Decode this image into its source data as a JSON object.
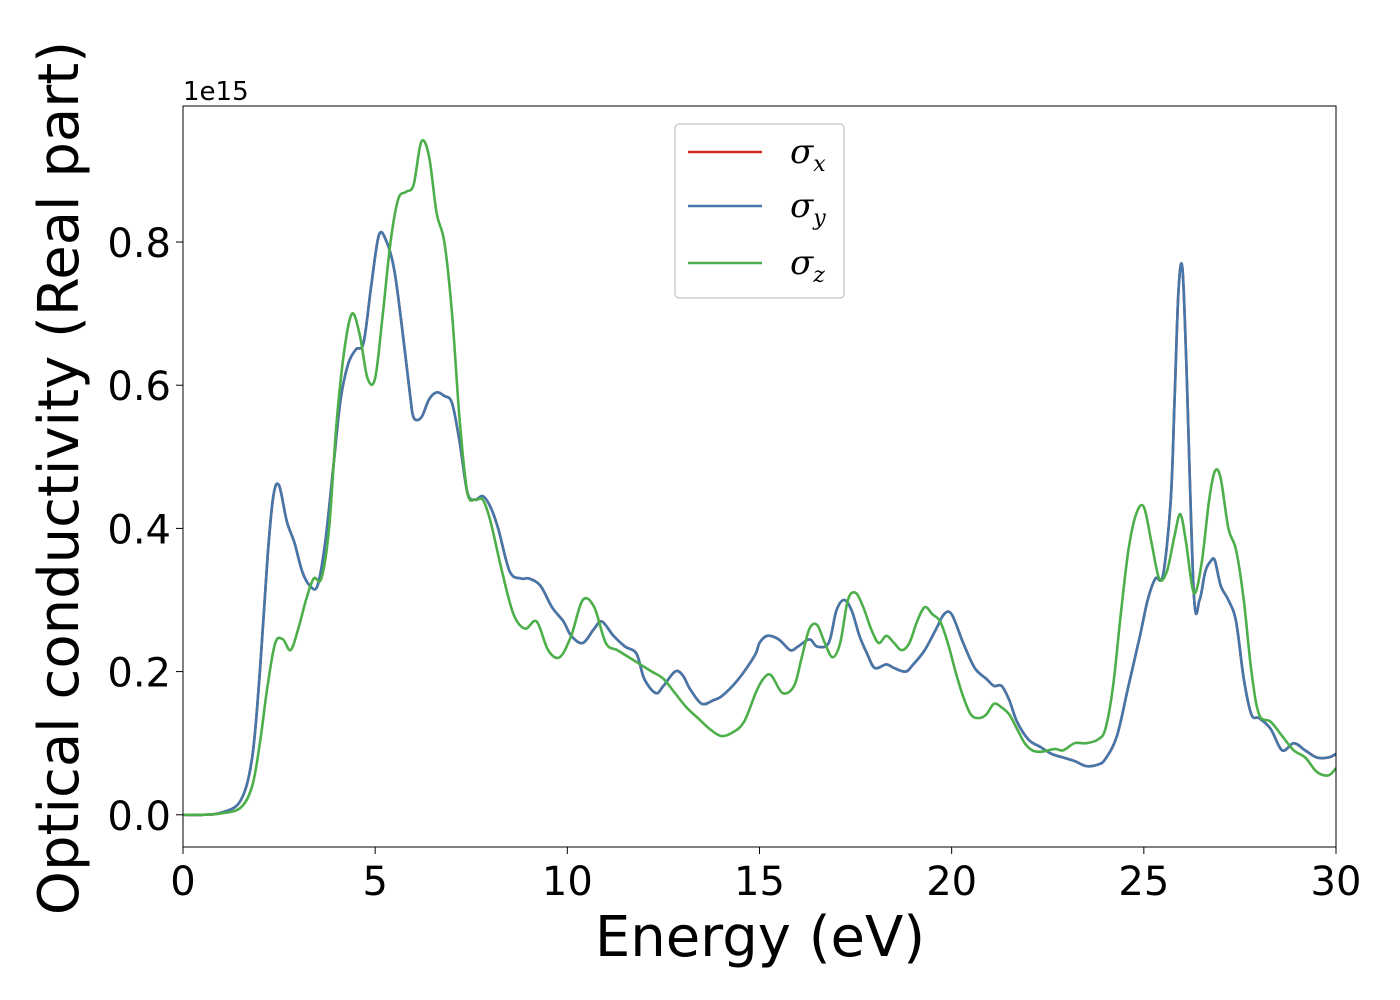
{
  "chart_data": {
    "type": "line",
    "xlabel": "Energy (eV)",
    "ylabel": "Optical conductivity (Real part)",
    "y_offset_text": "1e15",
    "y_scale": 1000000000000000.0,
    "xlim": [
      0,
      30
    ],
    "ylim": [
      -0.045,
      0.99
    ],
    "xticks": [
      0,
      5,
      10,
      15,
      20,
      25,
      30
    ],
    "xtick_labels": [
      "0",
      "5",
      "10",
      "15",
      "20",
      "25",
      "30"
    ],
    "yticks": [
      0.0,
      0.2,
      0.4,
      0.6,
      0.8
    ],
    "ytick_labels": [
      "0.0",
      "0.2",
      "0.4",
      "0.6",
      "0.8"
    ],
    "grid": false,
    "legend_position": "top-center",
    "series": [
      {
        "name": "σ",
        "subscript": "x",
        "color": "#d62728",
        "x": [
          0,
          0.5,
          1.0,
          1.5,
          1.8,
          2.0,
          2.2,
          2.35,
          2.5,
          2.7,
          2.9,
          3.1,
          3.3,
          3.5,
          3.7,
          3.9,
          4.1,
          4.3,
          4.5,
          4.7,
          4.9,
          5.1,
          5.3,
          5.5,
          5.7,
          5.9,
          6.0,
          6.2,
          6.4,
          6.6,
          6.8,
          7.0,
          7.2,
          7.4,
          7.6,
          7.8,
          8.0,
          8.2,
          8.5,
          8.8,
          9.0,
          9.3,
          9.6,
          9.9,
          10.1,
          10.4,
          10.7,
          10.9,
          11.2,
          11.5,
          11.8,
          12.0,
          12.3,
          12.5,
          12.8,
          13.0,
          13.2,
          13.5,
          13.8,
          14.0,
          14.3,
          14.6,
          14.9,
          15.0,
          15.2,
          15.5,
          15.8,
          16.0,
          16.3,
          16.5,
          16.8,
          17.0,
          17.2,
          17.4,
          17.6,
          17.8,
          18.0,
          18.3,
          18.5,
          18.8,
          19.0,
          19.3,
          19.6,
          19.8,
          20.0,
          20.3,
          20.6,
          20.9,
          21.1,
          21.3,
          21.5,
          21.7,
          22.0,
          22.3,
          22.6,
          22.9,
          23.2,
          23.5,
          23.8,
          24.0,
          24.3,
          24.6,
          24.9,
          25.1,
          25.3,
          25.5,
          25.7,
          25.8,
          25.9,
          26.0,
          26.1,
          26.3,
          26.45,
          26.6,
          26.75,
          26.85,
          27.0,
          27.2,
          27.4,
          27.6,
          27.8,
          28.0,
          28.3,
          28.6,
          28.9,
          29.2,
          29.5,
          29.8,
          30.0
        ],
        "y": [
          0.0,
          0.0,
          0.003,
          0.02,
          0.08,
          0.2,
          0.36,
          0.445,
          0.46,
          0.41,
          0.38,
          0.34,
          0.32,
          0.32,
          0.38,
          0.48,
          0.58,
          0.63,
          0.65,
          0.66,
          0.74,
          0.81,
          0.8,
          0.76,
          0.68,
          0.59,
          0.555,
          0.555,
          0.58,
          0.59,
          0.585,
          0.575,
          0.52,
          0.45,
          0.44,
          0.445,
          0.43,
          0.4,
          0.34,
          0.33,
          0.33,
          0.32,
          0.29,
          0.27,
          0.25,
          0.24,
          0.26,
          0.27,
          0.25,
          0.235,
          0.225,
          0.19,
          0.17,
          0.18,
          0.2,
          0.195,
          0.175,
          0.155,
          0.16,
          0.165,
          0.18,
          0.2,
          0.225,
          0.24,
          0.25,
          0.245,
          0.23,
          0.235,
          0.245,
          0.235,
          0.24,
          0.285,
          0.3,
          0.285,
          0.25,
          0.225,
          0.205,
          0.21,
          0.205,
          0.2,
          0.21,
          0.23,
          0.26,
          0.28,
          0.28,
          0.24,
          0.205,
          0.19,
          0.18,
          0.18,
          0.16,
          0.13,
          0.105,
          0.095,
          0.085,
          0.08,
          0.075,
          0.068,
          0.07,
          0.078,
          0.11,
          0.18,
          0.25,
          0.3,
          0.33,
          0.335,
          0.44,
          0.58,
          0.73,
          0.765,
          0.64,
          0.31,
          0.3,
          0.34,
          0.355,
          0.355,
          0.32,
          0.3,
          0.27,
          0.19,
          0.14,
          0.135,
          0.12,
          0.09,
          0.1,
          0.09,
          0.08,
          0.08,
          0.085
        ]
      },
      {
        "name": "σ",
        "subscript": "y",
        "color": "#4477aa",
        "x": [
          0,
          0.5,
          1.0,
          1.5,
          1.8,
          2.0,
          2.2,
          2.35,
          2.5,
          2.7,
          2.9,
          3.1,
          3.3,
          3.5,
          3.7,
          3.9,
          4.1,
          4.3,
          4.5,
          4.7,
          4.9,
          5.1,
          5.3,
          5.5,
          5.7,
          5.9,
          6.0,
          6.2,
          6.4,
          6.6,
          6.8,
          7.0,
          7.2,
          7.4,
          7.6,
          7.8,
          8.0,
          8.2,
          8.5,
          8.8,
          9.0,
          9.3,
          9.6,
          9.9,
          10.1,
          10.4,
          10.7,
          10.9,
          11.2,
          11.5,
          11.8,
          12.0,
          12.3,
          12.5,
          12.8,
          13.0,
          13.2,
          13.5,
          13.8,
          14.0,
          14.3,
          14.6,
          14.9,
          15.0,
          15.2,
          15.5,
          15.8,
          16.0,
          16.3,
          16.5,
          16.8,
          17.0,
          17.2,
          17.4,
          17.6,
          17.8,
          18.0,
          18.3,
          18.5,
          18.8,
          19.0,
          19.3,
          19.6,
          19.8,
          20.0,
          20.3,
          20.6,
          20.9,
          21.1,
          21.3,
          21.5,
          21.7,
          22.0,
          22.3,
          22.6,
          22.9,
          23.2,
          23.5,
          23.8,
          24.0,
          24.3,
          24.6,
          24.9,
          25.1,
          25.3,
          25.5,
          25.7,
          25.8,
          25.9,
          26.0,
          26.1,
          26.3,
          26.45,
          26.6,
          26.75,
          26.85,
          27.0,
          27.2,
          27.4,
          27.6,
          27.8,
          28.0,
          28.3,
          28.6,
          28.9,
          29.2,
          29.5,
          29.8,
          30.0
        ],
        "y": [
          0.0,
          0.0,
          0.003,
          0.02,
          0.08,
          0.2,
          0.36,
          0.445,
          0.46,
          0.41,
          0.38,
          0.34,
          0.32,
          0.32,
          0.38,
          0.48,
          0.58,
          0.63,
          0.65,
          0.66,
          0.74,
          0.81,
          0.8,
          0.76,
          0.68,
          0.59,
          0.555,
          0.555,
          0.58,
          0.59,
          0.585,
          0.575,
          0.52,
          0.45,
          0.44,
          0.445,
          0.43,
          0.4,
          0.34,
          0.33,
          0.33,
          0.32,
          0.29,
          0.27,
          0.25,
          0.24,
          0.26,
          0.27,
          0.25,
          0.235,
          0.225,
          0.19,
          0.17,
          0.18,
          0.2,
          0.195,
          0.175,
          0.155,
          0.16,
          0.165,
          0.18,
          0.2,
          0.225,
          0.24,
          0.25,
          0.245,
          0.23,
          0.235,
          0.245,
          0.235,
          0.24,
          0.285,
          0.3,
          0.285,
          0.25,
          0.225,
          0.205,
          0.21,
          0.205,
          0.2,
          0.21,
          0.23,
          0.26,
          0.28,
          0.28,
          0.24,
          0.205,
          0.19,
          0.18,
          0.18,
          0.16,
          0.13,
          0.105,
          0.095,
          0.085,
          0.08,
          0.075,
          0.068,
          0.07,
          0.078,
          0.11,
          0.18,
          0.25,
          0.3,
          0.33,
          0.335,
          0.44,
          0.58,
          0.73,
          0.765,
          0.64,
          0.31,
          0.3,
          0.34,
          0.355,
          0.355,
          0.32,
          0.3,
          0.27,
          0.19,
          0.14,
          0.135,
          0.12,
          0.09,
          0.1,
          0.09,
          0.08,
          0.08,
          0.085
        ]
      },
      {
        "name": "σ",
        "subscript": "z",
        "color": "#4daf4a",
        "x": [
          0,
          0.5,
          1.0,
          1.5,
          1.8,
          2.0,
          2.2,
          2.4,
          2.6,
          2.8,
          3.0,
          3.2,
          3.4,
          3.6,
          3.8,
          4.0,
          4.2,
          4.4,
          4.6,
          4.8,
          5.0,
          5.2,
          5.4,
          5.6,
          5.8,
          6.0,
          6.2,
          6.4,
          6.6,
          6.8,
          7.0,
          7.2,
          7.4,
          7.6,
          7.8,
          8.0,
          8.3,
          8.6,
          8.9,
          9.2,
          9.5,
          9.8,
          10.1,
          10.4,
          10.7,
          11.0,
          11.3,
          11.6,
          11.9,
          12.2,
          12.5,
          12.8,
          13.1,
          13.4,
          13.7,
          14.0,
          14.3,
          14.6,
          14.9,
          15.1,
          15.3,
          15.6,
          15.9,
          16.1,
          16.3,
          16.5,
          16.7,
          16.9,
          17.1,
          17.3,
          17.5,
          17.7,
          17.9,
          18.1,
          18.3,
          18.5,
          18.7,
          18.9,
          19.1,
          19.3,
          19.5,
          19.7,
          19.9,
          20.1,
          20.3,
          20.5,
          20.7,
          20.9,
          21.1,
          21.3,
          21.5,
          21.7,
          21.9,
          22.1,
          22.3,
          22.5,
          22.7,
          22.9,
          23.2,
          23.5,
          23.8,
          24.0,
          24.2,
          24.4,
          24.6,
          24.8,
          25.0,
          25.2,
          25.4,
          25.6,
          25.8,
          25.95,
          26.1,
          26.3,
          26.5,
          26.7,
          26.85,
          27.0,
          27.2,
          27.4,
          27.6,
          27.8,
          28.0,
          28.3,
          28.6,
          28.9,
          29.2,
          29.5,
          29.8,
          30.0
        ],
        "y": [
          0.0,
          0.0,
          0.002,
          0.01,
          0.04,
          0.1,
          0.18,
          0.24,
          0.245,
          0.23,
          0.26,
          0.3,
          0.33,
          0.33,
          0.4,
          0.55,
          0.65,
          0.7,
          0.67,
          0.61,
          0.61,
          0.7,
          0.8,
          0.86,
          0.87,
          0.88,
          0.94,
          0.92,
          0.84,
          0.8,
          0.7,
          0.55,
          0.45,
          0.44,
          0.44,
          0.41,
          0.34,
          0.28,
          0.26,
          0.27,
          0.23,
          0.22,
          0.25,
          0.3,
          0.29,
          0.24,
          0.23,
          0.22,
          0.21,
          0.2,
          0.19,
          0.17,
          0.15,
          0.135,
          0.12,
          0.11,
          0.115,
          0.13,
          0.17,
          0.19,
          0.195,
          0.17,
          0.18,
          0.22,
          0.26,
          0.265,
          0.24,
          0.22,
          0.24,
          0.3,
          0.31,
          0.29,
          0.26,
          0.24,
          0.25,
          0.24,
          0.23,
          0.24,
          0.27,
          0.29,
          0.28,
          0.27,
          0.24,
          0.2,
          0.165,
          0.14,
          0.135,
          0.14,
          0.155,
          0.15,
          0.14,
          0.12,
          0.1,
          0.09,
          0.088,
          0.09,
          0.092,
          0.09,
          0.1,
          0.1,
          0.105,
          0.12,
          0.18,
          0.28,
          0.37,
          0.42,
          0.43,
          0.38,
          0.33,
          0.34,
          0.39,
          0.42,
          0.38,
          0.31,
          0.35,
          0.44,
          0.48,
          0.47,
          0.4,
          0.37,
          0.3,
          0.2,
          0.14,
          0.13,
          0.11,
          0.09,
          0.08,
          0.06,
          0.055,
          0.065
        ]
      }
    ]
  }
}
